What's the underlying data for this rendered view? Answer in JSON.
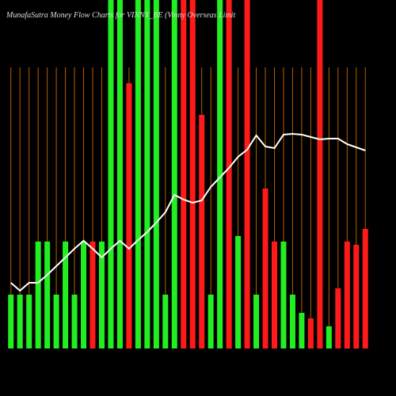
{
  "chart_data": {
    "type": "bar",
    "title": "MunafaSutra  Money Flow  Charts for VINNY_BE  (Vinny Overseas Limit",
    "categories": [
      null,
      null,
      null,
      null,
      null,
      null,
      null,
      null,
      null,
      null,
      null,
      null,
      null,
      null,
      null,
      null,
      null,
      null,
      null,
      null,
      null,
      null,
      null,
      null,
      null,
      null,
      null,
      null,
      null,
      null,
      null,
      null,
      null,
      null,
      null,
      null,
      null,
      null,
      null,
      null
    ],
    "values": [
      68,
      68,
      68,
      135,
      135,
      68,
      135,
      68,
      135,
      135,
      135,
      440,
      440,
      335,
      440,
      440,
      440,
      68,
      440,
      440,
      440,
      295,
      68,
      440,
      440,
      142,
      440,
      68,
      202,
      135,
      135,
      68,
      45,
      38,
      440,
      28,
      76,
      135,
      131,
      151
    ],
    "colors": [
      "#22ee22",
      "#22ee22",
      "#22ee22",
      "#22ee22",
      "#22ee22",
      "#22ee22",
      "#22ee22",
      "#22ee22",
      "#22ee22",
      "#ff1a1a",
      "#22ee22",
      "#22ee22",
      "#22ee22",
      "#ff1a1a",
      "#22ee22",
      "#22ee22",
      "#22ee22",
      "#22ee22",
      "#22ee22",
      "#ff1a1a",
      "#ff1a1a",
      "#ff1a1a",
      "#22ee22",
      "#22ee22",
      "#ff1a1a",
      "#22ee22",
      "#ff1a1a",
      "#22ee22",
      "#ff1a1a",
      "#ff1a1a",
      "#22ee22",
      "#22ee22",
      "#22ee22",
      "#ff1a1a",
      "#ff1a1a",
      "#22ee22",
      "#ff1a1a",
      "#ff1a1a",
      "#ff1a1a",
      "#ff1a1a"
    ],
    "line": {
      "color": "#ffffff",
      "values": [
        83,
        73,
        83,
        83,
        93,
        104,
        115,
        126,
        136,
        126,
        115,
        126,
        136,
        126,
        137,
        147,
        159,
        172,
        194,
        188,
        184,
        187,
        204,
        216,
        228,
        242,
        251,
        269,
        255,
        253,
        270,
        271,
        270,
        267,
        264,
        265,
        265,
        258,
        254,
        250
      ]
    },
    "ylim": [
      0,
      440
    ],
    "guide_color": "#b85c00"
  }
}
